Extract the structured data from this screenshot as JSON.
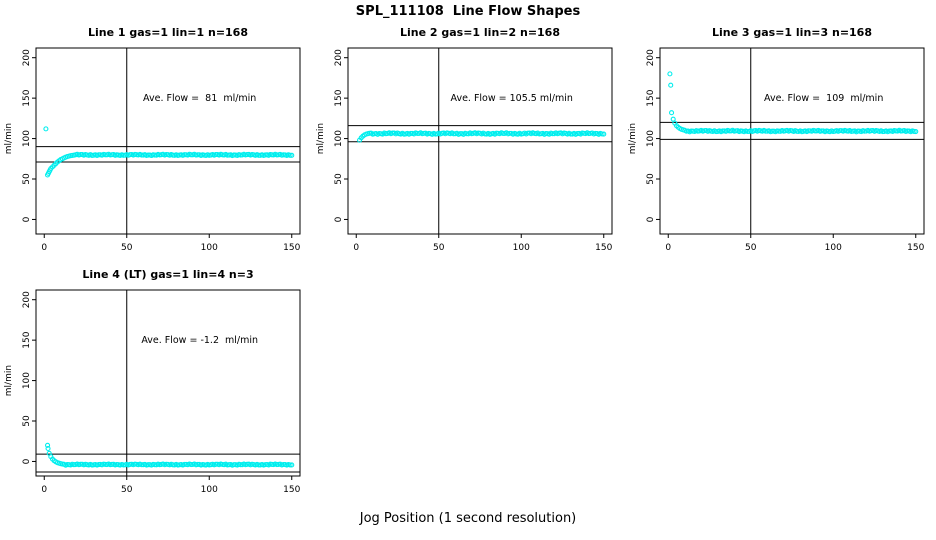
{
  "figure": {
    "title": "SPL_111108  Line Flow Shapes",
    "xlabel": "Jog Position (1 second resolution)"
  },
  "chart_data": [
    {
      "type": "scatter",
      "title": "Line 1 gas=1 lin=1 n=168",
      "annotation": "Ave. Flow =  81  ml/min",
      "ylabel": "ml/min",
      "xlim": [
        -5,
        155
      ],
      "ylim": [
        -18,
        212
      ],
      "xticks": [
        0,
        50,
        100,
        150
      ],
      "yticks": [
        0,
        50,
        100,
        150,
        200
      ],
      "vline": 50,
      "hlines": [
        90,
        71
      ],
      "marker_color": "#00EEEE",
      "transient_points": [
        [
          1,
          112
        ],
        [
          2,
          55
        ],
        [
          2.5,
          57
        ],
        [
          3,
          59
        ],
        [
          3.5,
          61
        ],
        [
          4,
          63
        ],
        [
          5,
          65
        ],
        [
          6,
          67
        ],
        [
          7,
          69
        ],
        [
          8,
          71
        ],
        [
          9,
          72.5
        ],
        [
          10,
          74
        ],
        [
          11,
          75
        ],
        [
          12,
          76
        ],
        [
          13,
          77
        ],
        [
          14,
          77.7
        ],
        [
          15,
          78.3
        ],
        [
          16,
          78.8
        ],
        [
          17,
          79.2
        ],
        [
          18,
          79.5
        ]
      ],
      "steady": {
        "from": 19,
        "to": 150,
        "value": 79.8,
        "jitter": 0.8
      }
    },
    {
      "type": "scatter",
      "title": "Line 2 gas=1 lin=2 n=168",
      "annotation": "Ave. Flow = 105.5 ml/min",
      "ylabel": "ml/min",
      "xlim": [
        -5,
        155
      ],
      "ylim": [
        -18,
        212
      ],
      "xticks": [
        0,
        50,
        100,
        150
      ],
      "yticks": [
        0,
        50,
        100,
        150,
        200
      ],
      "vline": 50,
      "hlines": [
        116,
        96
      ],
      "marker_color": "#00EEEE",
      "transient_points": [
        [
          2,
          98
        ],
        [
          3,
          101
        ],
        [
          4,
          103
        ],
        [
          5,
          104.5
        ],
        [
          6,
          105.5
        ],
        [
          7,
          106
        ],
        [
          8,
          106.5
        ]
      ],
      "steady": {
        "from": 9,
        "to": 150,
        "value": 106.2,
        "jitter": 1.0
      }
    },
    {
      "type": "scatter",
      "title": "Line 3 gas=1 lin=3 n=168",
      "annotation": "Ave. Flow =  109  ml/min",
      "ylabel": "ml/min",
      "xlim": [
        -5,
        155
      ],
      "ylim": [
        -18,
        212
      ],
      "xticks": [
        0,
        50,
        100,
        150
      ],
      "yticks": [
        0,
        50,
        100,
        150,
        200
      ],
      "vline": 50,
      "hlines": [
        120,
        99
      ],
      "marker_color": "#00EEEE",
      "transient_points": [
        [
          1,
          180
        ],
        [
          1.5,
          166
        ],
        [
          2,
          132
        ],
        [
          3,
          124
        ],
        [
          4,
          119
        ],
        [
          5,
          116
        ],
        [
          6,
          114
        ],
        [
          7,
          112.5
        ],
        [
          8,
          111.5
        ],
        [
          9,
          110.8
        ],
        [
          10,
          110.2
        ]
      ],
      "steady": {
        "from": 11,
        "to": 150,
        "value": 109.3,
        "jitter": 0.9
      }
    },
    {
      "type": "scatter",
      "title": "Line 4 (LT) gas=1 lin=4 n=3",
      "annotation": "Ave. Flow = -1.2  ml/min",
      "ylabel": "ml/min",
      "xlim": [
        -5,
        155
      ],
      "ylim": [
        -18,
        212
      ],
      "xticks": [
        0,
        50,
        100,
        150
      ],
      "yticks": [
        0,
        50,
        100,
        150,
        200
      ],
      "vline": 50,
      "hlines": [
        9,
        -13
      ],
      "marker_color": "#00EEEE",
      "transient_points": [
        [
          2,
          20
        ],
        [
          2.3,
          16
        ],
        [
          3,
          10
        ],
        [
          4,
          6
        ],
        [
          5,
          3
        ],
        [
          6,
          1
        ],
        [
          7,
          -0.5
        ],
        [
          8,
          -1.5
        ],
        [
          9,
          -2.2
        ],
        [
          10,
          -2.8
        ],
        [
          11,
          -3.2
        ],
        [
          12,
          -3.5
        ]
      ],
      "steady": {
        "from": 13,
        "to": 150,
        "value": -3.9,
        "jitter": 0.7
      }
    }
  ]
}
